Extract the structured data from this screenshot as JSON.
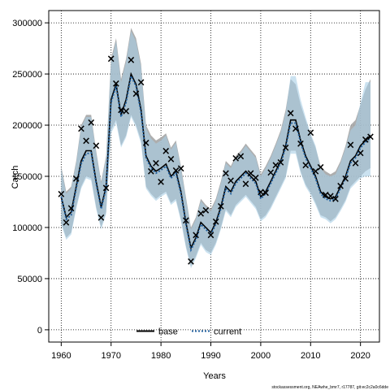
{
  "chart_data": {
    "type": "line",
    "title": "",
    "xlabel": "Years",
    "ylabel": "Catch",
    "xlim": [
      1957.5,
      2023.8
    ],
    "ylim": [
      -12000,
      312000
    ],
    "xticks": [
      1960,
      1970,
      1980,
      1990,
      2000,
      2010,
      2020
    ],
    "yticks": [
      0,
      50000,
      100000,
      150000,
      200000,
      250000,
      300000
    ],
    "grid": true,
    "legend_position": "bottom",
    "years": [
      1960,
      1961,
      1962,
      1963,
      1964,
      1965,
      1966,
      1967,
      1968,
      1969,
      1970,
      1971,
      1972,
      1973,
      1974,
      1975,
      1976,
      1977,
      1978,
      1979,
      1980,
      1981,
      1982,
      1983,
      1984,
      1985,
      1986,
      1987,
      1988,
      1989,
      1990,
      1991,
      1992,
      1993,
      1994,
      1995,
      1996,
      1997,
      1998,
      1999,
      2000,
      2001,
      2002,
      2003,
      2004,
      2005,
      2006,
      2007,
      2008,
      2009,
      2010,
      2011,
      2012,
      2013,
      2014,
      2015,
      2016,
      2017,
      2018,
      2019,
      2020,
      2021,
      2022
    ],
    "series": [
      {
        "name": "base",
        "color": "#000000",
        "style": "solid",
        "band_color": "#a0a0a0",
        "estimate": [
          130000,
          110000,
          115000,
          140000,
          165000,
          175000,
          175000,
          145000,
          120000,
          140000,
          225000,
          240000,
          210000,
          225000,
          250000,
          240000,
          215000,
          170000,
          160000,
          155000,
          158000,
          162000,
          150000,
          155000,
          135000,
          105000,
          80000,
          90000,
          105000,
          100000,
          95000,
          105000,
          120000,
          140000,
          135000,
          145000,
          150000,
          155000,
          150000,
          145000,
          130000,
          135000,
          145000,
          155000,
          165000,
          180000,
          205000,
          205000,
          185000,
          170000,
          160000,
          150000,
          135000,
          130000,
          128000,
          130000,
          140000,
          150000,
          165000,
          170000,
          180000,
          185000,
          190000
        ],
        "lower": [
          105000,
          90000,
          95000,
          120000,
          140000,
          150000,
          148000,
          120000,
          100000,
          115000,
          195000,
          205000,
          180000,
          190000,
          210000,
          200000,
          185000,
          140000,
          133000,
          128000,
          132000,
          135000,
          124000,
          128000,
          108000,
          82000,
          62000,
          72000,
          85000,
          78000,
          75000,
          85000,
          100000,
          118000,
          112000,
          122000,
          127000,
          132000,
          126000,
          120000,
          108000,
          112000,
          120000,
          130000,
          140000,
          150000,
          175000,
          175000,
          155000,
          142000,
          134000,
          124000,
          112000,
          110000,
          106000,
          110000,
          118000,
          127000,
          140000,
          145000,
          150000,
          155000,
          158000
        ],
        "upper": [
          160000,
          135000,
          140000,
          165000,
          200000,
          210000,
          210000,
          175000,
          145000,
          170000,
          265000,
          285000,
          245000,
          265000,
          295000,
          285000,
          260000,
          200000,
          190000,
          185000,
          188000,
          192000,
          178000,
          185000,
          160000,
          130000,
          100000,
          110000,
          128000,
          122000,
          118000,
          128000,
          145000,
          165000,
          160000,
          170000,
          175000,
          182000,
          176000,
          170000,
          152000,
          160000,
          170000,
          182000,
          195000,
          215000,
          245000,
          240000,
          220000,
          205000,
          190000,
          178000,
          160000,
          155000,
          152000,
          155000,
          165000,
          180000,
          200000,
          205000,
          220000,
          235000,
          245000
        ]
      },
      {
        "name": "current",
        "color": "#1f5f9f",
        "style": "dotted",
        "band_color": "#a8cfe6",
        "estimate": [
          130000,
          108000,
          112000,
          138000,
          162000,
          172000,
          173000,
          143000,
          118000,
          138000,
          222000,
          238000,
          208000,
          222000,
          248000,
          238000,
          212000,
          168000,
          158000,
          153000,
          156000,
          160000,
          148000,
          153000,
          133000,
          103000,
          78000,
          88000,
          103000,
          98000,
          93000,
          103000,
          118000,
          138000,
          133000,
          143000,
          148000,
          153000,
          148000,
          143000,
          128000,
          133000,
          143000,
          153000,
          163000,
          178000,
          202000,
          202000,
          183000,
          168000,
          158000,
          148000,
          133000,
          128000,
          126000,
          128000,
          138000,
          148000,
          163000,
          168000,
          178000,
          183000,
          188000
        ],
        "lower": [
          103000,
          88000,
          93000,
          118000,
          138000,
          148000,
          146000,
          118000,
          98000,
          113000,
          192000,
          202000,
          178000,
          188000,
          208000,
          198000,
          182000,
          138000,
          131000,
          126000,
          130000,
          133000,
          122000,
          126000,
          106000,
          80000,
          60000,
          70000,
          83000,
          76000,
          73000,
          83000,
          98000,
          116000,
          110000,
          120000,
          125000,
          130000,
          124000,
          118000,
          106000,
          110000,
          118000,
          128000,
          138000,
          148000,
          172000,
          172000,
          153000,
          140000,
          132000,
          122000,
          110000,
          108000,
          104000,
          108000,
          116000,
          125000,
          138000,
          143000,
          148000,
          150000,
          150000
        ],
        "upper": [
          158000,
          133000,
          138000,
          163000,
          198000,
          208000,
          208000,
          173000,
          143000,
          168000,
          262000,
          282000,
          242000,
          262000,
          292000,
          282000,
          257000,
          197000,
          187000,
          182000,
          185000,
          190000,
          176000,
          183000,
          158000,
          128000,
          98000,
          108000,
          126000,
          120000,
          116000,
          126000,
          143000,
          163000,
          158000,
          168000,
          173000,
          180000,
          174000,
          168000,
          150000,
          158000,
          168000,
          180000,
          193000,
          212000,
          248000,
          248000,
          225000,
          208000,
          192000,
          180000,
          158000,
          152000,
          150000,
          152000,
          163000,
          178000,
          195000,
          200000,
          222000,
          242000,
          242000
        ]
      }
    ],
    "observed": {
      "marker": "×",
      "x": [
        1960,
        1961,
        1962,
        1963,
        1964,
        1965,
        1966,
        1967,
        1968,
        1969,
        1970,
        1971,
        1972,
        1973,
        1974,
        1975,
        1976,
        1977,
        1978,
        1979,
        1980,
        1981,
        1982,
        1983,
        1984,
        1985,
        1986,
        1987,
        1988,
        1989,
        1990,
        1991,
        1992,
        1993,
        1994,
        1995,
        1996,
        1997,
        1998,
        1999,
        2000,
        2001,
        2002,
        2003,
        2004,
        2005,
        2006,
        2007,
        2008,
        2009,
        2010,
        2011,
        2012,
        2013,
        2014,
        2015,
        2016,
        2017,
        2018,
        2019,
        2020,
        2021
      ],
      "y": [
        133000,
        105000,
        119000,
        148000,
        197000,
        185000,
        203000,
        180000,
        110000,
        139000,
        265000,
        241000,
        215000,
        214000,
        264000,
        231000,
        242000,
        183000,
        155000,
        163000,
        145000,
        175000,
        167000,
        156000,
        158000,
        107000,
        67000,
        93000,
        114000,
        117000,
        93000,
        106000,
        121000,
        153000,
        146000,
        168000,
        170000,
        143000,
        153000,
        149000,
        135000,
        134000,
        154000,
        161000,
        164000,
        178000,
        212000,
        197000,
        182000,
        161000,
        193000,
        155000,
        159000,
        132000,
        131000,
        128000,
        141000,
        148000,
        181000,
        163000,
        173000,
        186000
      ],
      "extra_x": [
        2022
      ],
      "extra_y": [
        189000
      ]
    }
  },
  "legend": {
    "base_label": "base",
    "current_label": "current"
  },
  "credit": "stockassessment.org, NEAwhe_bmr7, r17787, git:ec2c2a0c6dde"
}
